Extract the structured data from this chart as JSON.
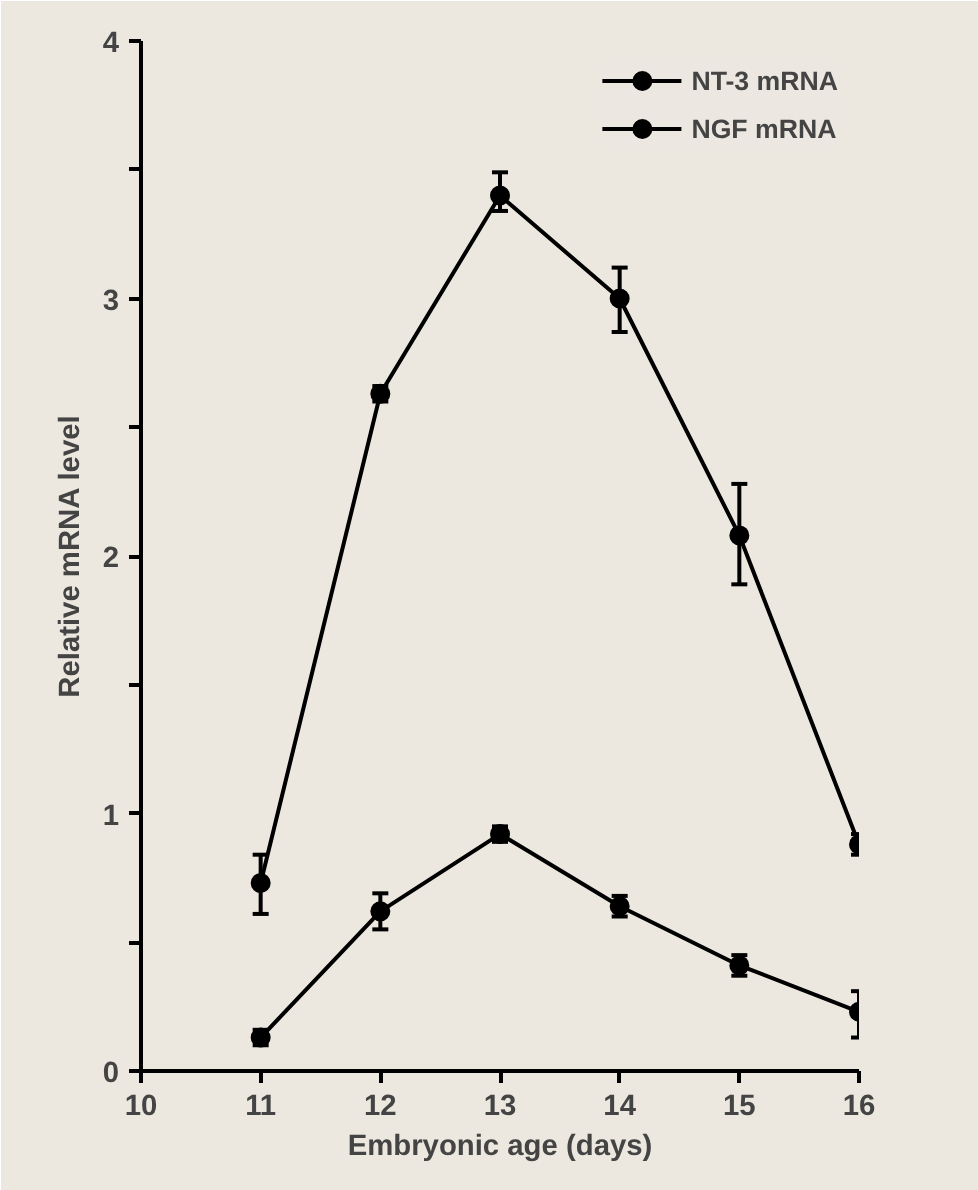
{
  "chart_data": {
    "type": "line",
    "xlabel": "Embryonic age (days)",
    "ylabel": "Relative mRNA level",
    "x": [
      11,
      12,
      13,
      14,
      15,
      16
    ],
    "series": [
      {
        "name": "NT-3 mRNA",
        "color": "#000000",
        "values": [
          0.73,
          2.63,
          3.4,
          3.0,
          2.08,
          0.88
        ],
        "errors": [
          [
            0.61,
            0.84
          ],
          [
            2.6,
            2.66
          ],
          [
            3.34,
            3.49
          ],
          [
            2.87,
            3.12
          ],
          [
            1.89,
            2.28
          ],
          [
            0.84,
            0.92
          ]
        ]
      },
      {
        "name": "NGF mRNA",
        "color": "#000000",
        "values": [
          0.13,
          0.62,
          0.92,
          0.64,
          0.41,
          0.23
        ],
        "errors": [
          [
            0.1,
            0.16
          ],
          [
            0.55,
            0.69
          ],
          [
            0.89,
            0.95
          ],
          [
            0.6,
            0.68
          ],
          [
            0.37,
            0.45
          ],
          [
            0.13,
            0.31
          ]
        ]
      }
    ],
    "xlim": [
      10,
      16
    ],
    "xticks": [
      10,
      11,
      12,
      13,
      14,
      15,
      16
    ],
    "ylim": [
      0,
      4
    ],
    "yticks": [
      0,
      {
        "value": 0.5,
        "label": null
      },
      1,
      {
        "value": 1.5,
        "label": null
      },
      2,
      {
        "value": 2.5,
        "label": null
      },
      3,
      {
        "value": 3.5,
        "label": null
      },
      4
    ],
    "marker": "circle",
    "line_style": "solid",
    "grid": false,
    "legend": "top right"
  }
}
